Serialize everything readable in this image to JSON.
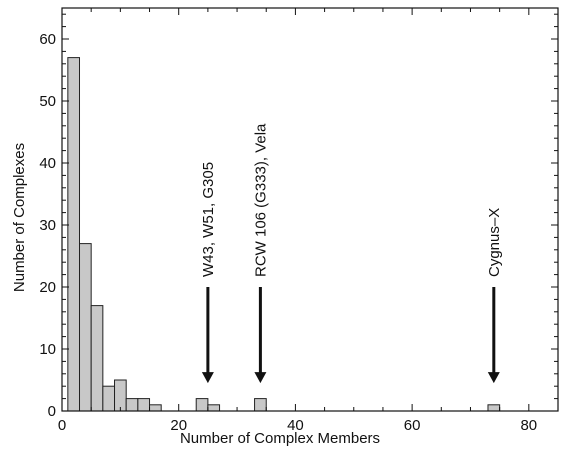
{
  "chart_data": {
    "type": "bar",
    "xlabel": "Number of Complex Members",
    "ylabel": "Number of Complexes",
    "xlim": [
      0,
      85
    ],
    "ylim": [
      0,
      65
    ],
    "x_ticks": [
      0,
      20,
      40,
      60,
      80
    ],
    "y_ticks": [
      0,
      10,
      20,
      30,
      40,
      50,
      60
    ],
    "bin_width": 2,
    "bins": [
      {
        "start": 1,
        "end": 3,
        "value": 57
      },
      {
        "start": 3,
        "end": 5,
        "value": 27
      },
      {
        "start": 5,
        "end": 7,
        "value": 17
      },
      {
        "start": 7,
        "end": 9,
        "value": 4
      },
      {
        "start": 9,
        "end": 11,
        "value": 5
      },
      {
        "start": 11,
        "end": 13,
        "value": 2
      },
      {
        "start": 13,
        "end": 15,
        "value": 2
      },
      {
        "start": 15,
        "end": 17,
        "value": 1
      },
      {
        "start": 23,
        "end": 25,
        "value": 2
      },
      {
        "start": 25,
        "end": 27,
        "value": 1
      },
      {
        "start": 33,
        "end": 35,
        "value": 2
      },
      {
        "start": 73,
        "end": 75,
        "value": 1
      }
    ],
    "annotations": [
      {
        "text": "W43, W51, G305",
        "x": 25
      },
      {
        "text": "RCW 106 (G333), Vela",
        "x": 34
      },
      {
        "text": "Cygnus–X",
        "x": 74
      }
    ],
    "grid": false,
    "legend": "none",
    "bar_color": "#c8c8c8",
    "edge_color": "#222222"
  }
}
